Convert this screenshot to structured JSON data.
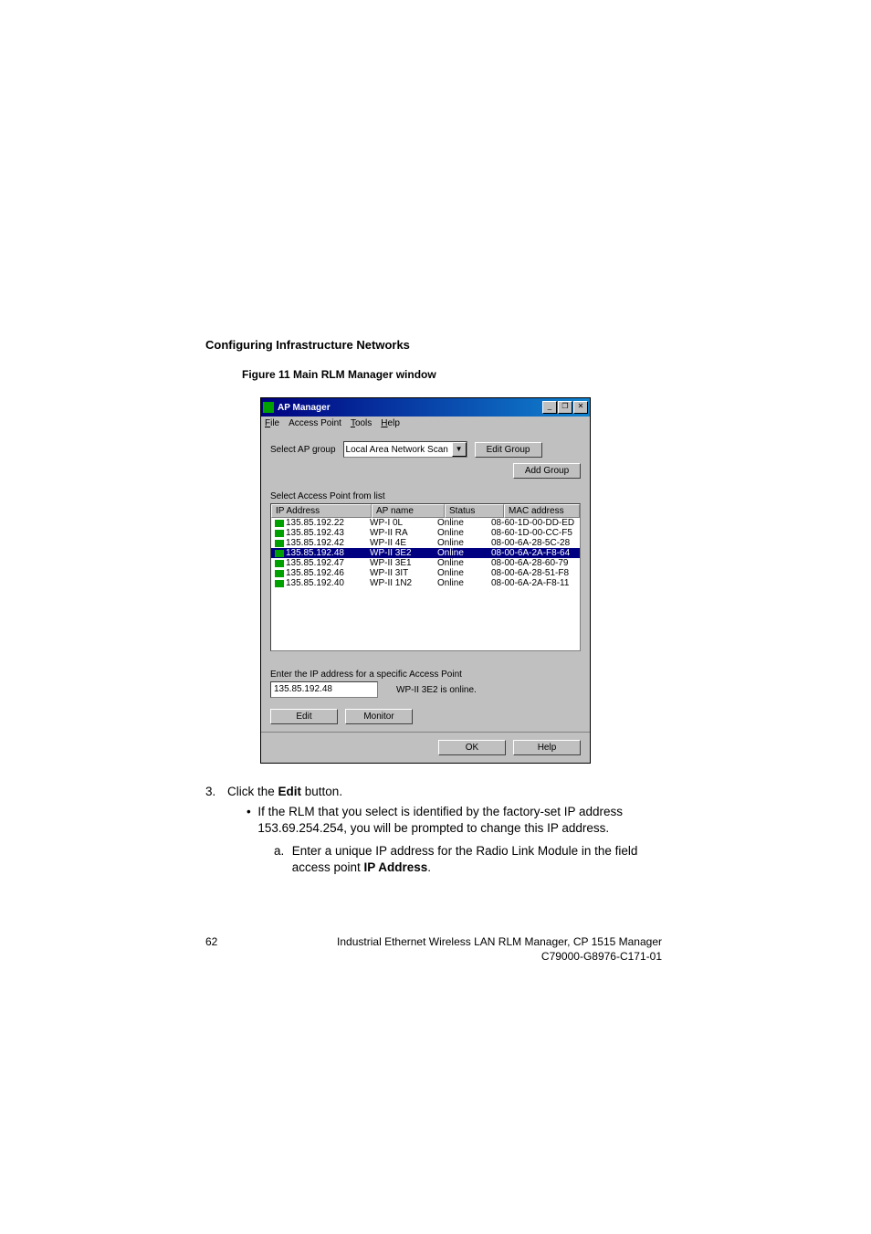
{
  "heading": "Configuring Infrastructure Networks",
  "figure_caption": "Figure 11    Main RLM Manager window",
  "window": {
    "title": "AP Manager",
    "minimize_icon": "_",
    "restore_icon": "❐",
    "close_icon": "✕",
    "menu": {
      "file": "File",
      "access_point": "Access Point",
      "tools": "Tools",
      "help": "Help"
    },
    "select_group_label": "Select AP group",
    "combo_value": "Local Area Network Scan",
    "combo_arrow": "▼",
    "edit_group_btn": "Edit Group",
    "add_group_btn": "Add Group",
    "select_ap_label": "Select Access Point from list",
    "columns": {
      "ip": "IP Address",
      "name": "AP name",
      "status": "Status",
      "mac": "MAC  address"
    },
    "rows": [
      {
        "ip": "135.85.192.22",
        "name": "WP-I 0L",
        "status": "Online",
        "mac": "08-60-1D-00-DD-ED",
        "sel": false
      },
      {
        "ip": "135.85.192.43",
        "name": "WP-II RA",
        "status": "Online",
        "mac": "08-60-1D-00-CC-F5",
        "sel": false
      },
      {
        "ip": "135.85.192.42",
        "name": "WP-II 4E",
        "status": "Online",
        "mac": "08-00-6A-28-5C-28",
        "sel": false
      },
      {
        "ip": "135.85.192.48",
        "name": "WP-II 3E2",
        "status": "Online",
        "mac": "08-00-6A-2A-F8-64",
        "sel": true
      },
      {
        "ip": "135.85.192.47",
        "name": "WP-II 3E1",
        "status": "Online",
        "mac": "08-00-6A-28-60-79",
        "sel": false
      },
      {
        "ip": "135.85.192.46",
        "name": "WP-II 3IT",
        "status": "Online",
        "mac": "08-00-6A-28-51-F8",
        "sel": false
      },
      {
        "ip": "135.85.192.40",
        "name": "WP-II 1N2",
        "status": "Online",
        "mac": "08-00-6A-2A-F8-11",
        "sel": false
      }
    ],
    "enter_ip_label": "Enter the IP address for a specific Access Point",
    "ip_value": "135.85.192.48",
    "status_msg": "WP-II 3E2 is online.",
    "edit_btn": "Edit",
    "monitor_btn": "Monitor",
    "ok_btn": "OK",
    "help_btn": "Help"
  },
  "step3_num": "3.",
  "step3_text_pre": "Click the ",
  "step3_bold": "Edit",
  "step3_text_post": " button.",
  "bullet_char": "•",
  "bullet_text": "If the RLM that you select is identified by the factory-set IP address 153.69.254.254, you will be prompted to change this IP address.",
  "sub_a": "a.",
  "sub_a_text_pre": "Enter a unique IP address for the Radio Link Module in the field access point ",
  "sub_a_bold": "IP Address",
  "sub_a_text_post": ".",
  "footer": {
    "page": "62",
    "line1": "Industrial Ethernet Wireless LAN  RLM Manager,  CP 1515 Manager",
    "line2": "C79000-G8976-C171-01"
  },
  "colors": {
    "titlebar_start": "#000080",
    "titlebar_end": "#1084d0",
    "window_bg": "#c0c0c0",
    "selection_bg": "#000080",
    "ap_icon": "#00a000"
  }
}
